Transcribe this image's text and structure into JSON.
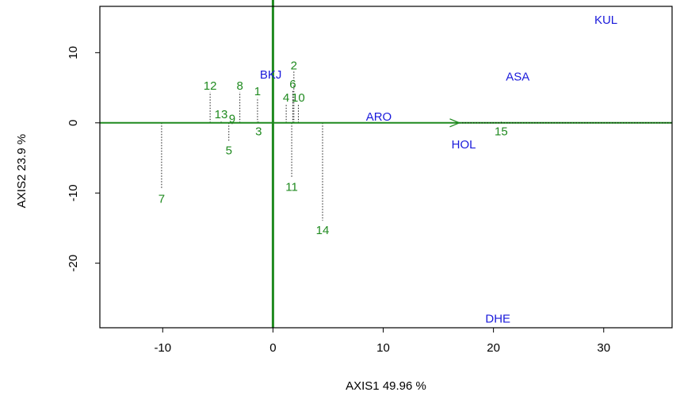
{
  "chart_data": {
    "type": "scatter",
    "xlabel": "AXIS1 49.96 %",
    "ylabel": "AXIS2 23.9 %",
    "xlim": [
      -15.7,
      36.2
    ],
    "ylim": [
      -29.2,
      16.6
    ],
    "xticks": [
      -10,
      0,
      10,
      20,
      30
    ],
    "yticks": [
      -20,
      -10,
      0,
      10
    ],
    "colors": {
      "points": "#1f8a1f",
      "variables": "#1a1adb",
      "axes": "#1f8a1f",
      "frame": "#000000"
    },
    "grid": false,
    "legend": "none",
    "points": [
      {
        "label": "2",
        "x": 1.9,
        "y": 8.2
      },
      {
        "label": "12",
        "x": -5.7,
        "y": 5.3
      },
      {
        "label": "8",
        "x": -3.0,
        "y": 5.3
      },
      {
        "label": "1",
        "x": -1.4,
        "y": 4.5
      },
      {
        "label": "6",
        "x": 1.8,
        "y": 5.5
      },
      {
        "label": "4",
        "x": 1.2,
        "y": 3.6
      },
      {
        "label": "10",
        "x": 2.3,
        "y": 3.6
      },
      {
        "label": "13",
        "x": -4.7,
        "y": 1.2
      },
      {
        "label": "9",
        "x": -3.7,
        "y": 0.6
      },
      {
        "label": "3",
        "x": -1.3,
        "y": -1.2
      },
      {
        "label": "5",
        "x": -4.0,
        "y": -3.9
      },
      {
        "label": "11",
        "x": 1.7,
        "y": -9.1
      },
      {
        "label": "7",
        "x": -10.1,
        "y": -10.8
      },
      {
        "label": "14",
        "x": 4.5,
        "y": -15.3
      },
      {
        "label": "15",
        "x": 20.7,
        "y": -1.2
      }
    ],
    "variables": [
      {
        "label": "BKJ",
        "x": -0.2,
        "y": 6.9
      },
      {
        "label": "ARO",
        "x": 9.6,
        "y": 0.9
      },
      {
        "label": "ASA",
        "x": 22.2,
        "y": 6.6
      },
      {
        "label": "KUL",
        "x": 30.2,
        "y": 14.7
      },
      {
        "label": "HOL",
        "x": 17.3,
        "y": -3.1
      },
      {
        "label": "DHE",
        "x": 20.4,
        "y": -27.9
      }
    ],
    "arrow": {
      "from": [
        0,
        0
      ],
      "to": [
        16.9,
        0
      ]
    }
  }
}
